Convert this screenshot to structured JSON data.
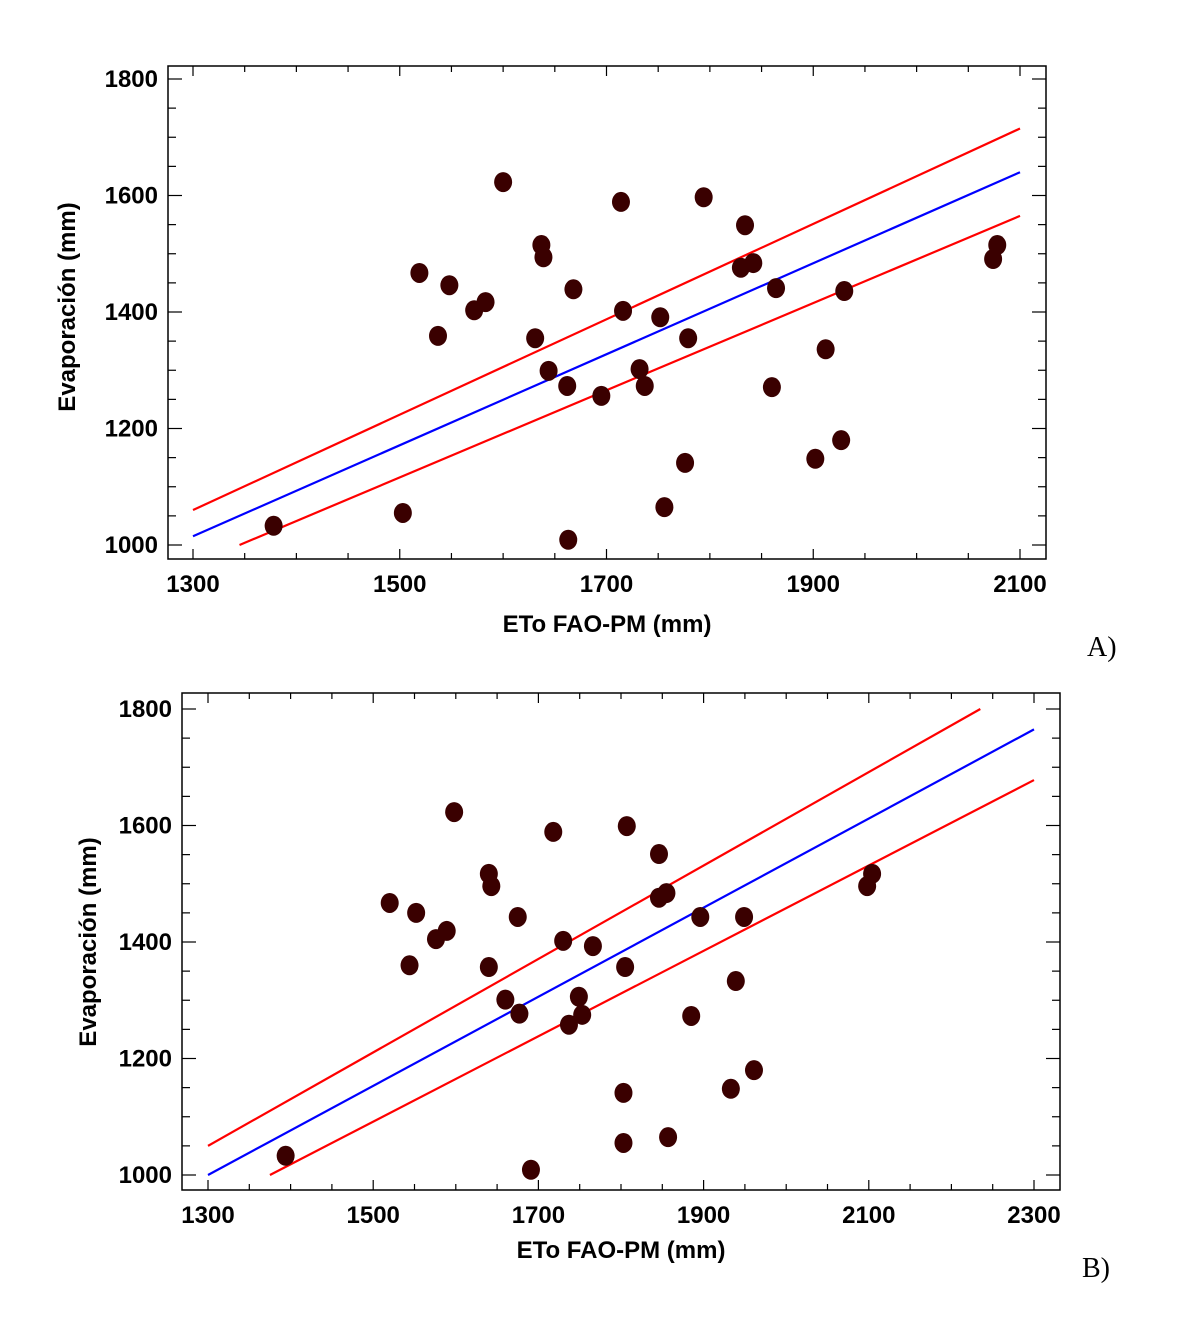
{
  "chart_data": [
    {
      "type": "scatter",
      "panel_label": "A)",
      "xlabel": "ETo FAO-PM (mm)",
      "ylabel": "Evaporación (mm)",
      "xlim": [
        1300,
        2100
      ],
      "ylim": [
        1000,
        1800
      ],
      "xticks": [
        1300,
        1500,
        1700,
        1900,
        2100
      ],
      "yticks": [
        1000,
        1200,
        1400,
        1600,
        1800
      ],
      "grid": false,
      "points": [
        [
          1378,
          1033
        ],
        [
          1503,
          1055
        ],
        [
          1519,
          1467
        ],
        [
          1537,
          1359
        ],
        [
          1548,
          1446
        ],
        [
          1572,
          1403
        ],
        [
          1583,
          1417
        ],
        [
          1600,
          1623
        ],
        [
          1631,
          1355
        ],
        [
          1637,
          1515
        ],
        [
          1639,
          1494
        ],
        [
          1644,
          1299
        ],
        [
          1662,
          1273
        ],
        [
          1663,
          1009
        ],
        [
          1668,
          1439
        ],
        [
          1695,
          1256
        ],
        [
          1714,
          1589
        ],
        [
          1716,
          1402
        ],
        [
          1732,
          1302
        ],
        [
          1737,
          1273
        ],
        [
          1752,
          1391
        ],
        [
          1756,
          1065
        ],
        [
          1776,
          1141
        ],
        [
          1779,
          1355
        ],
        [
          1794,
          1597
        ],
        [
          1830,
          1476
        ],
        [
          1834,
          1549
        ],
        [
          1842,
          1484
        ],
        [
          1860,
          1271
        ],
        [
          1864,
          1441
        ],
        [
          1902,
          1148
        ],
        [
          1912,
          1336
        ],
        [
          1927,
          1180
        ],
        [
          1930,
          1436
        ],
        [
          2074,
          1491
        ],
        [
          2078,
          1515
        ]
      ],
      "lines": [
        {
          "name": "fit",
          "color": "#0000ff",
          "from": [
            1300,
            1015
          ],
          "to": [
            2100,
            1640
          ]
        },
        {
          "name": "upper-limit",
          "color": "#ff0000",
          "from": [
            1300,
            1060
          ],
          "to": [
            2100,
            1715
          ]
        },
        {
          "name": "lower-limit",
          "color": "#ff0000",
          "from": [
            1345,
            1000
          ],
          "to": [
            2100,
            1565
          ]
        }
      ],
      "point_color": "#3a0000"
    },
    {
      "type": "scatter",
      "panel_label": "B)",
      "xlabel": "ETo FAO-PM (mm)",
      "ylabel": "Evaporación (mm)",
      "xlim": [
        1300,
        2300
      ],
      "ylim": [
        1000,
        1800
      ],
      "xticks": [
        1300,
        1500,
        1700,
        1900,
        2100,
        2300
      ],
      "yticks": [
        1000,
        1200,
        1400,
        1600,
        1800
      ],
      "grid": false,
      "points": [
        [
          1394,
          1033
        ],
        [
          1520,
          1467
        ],
        [
          1544,
          1360
        ],
        [
          1552,
          1450
        ],
        [
          1576,
          1405
        ],
        [
          1589,
          1419
        ],
        [
          1598,
          1623
        ],
        [
          1640,
          1357
        ],
        [
          1640,
          1517
        ],
        [
          1643,
          1496
        ],
        [
          1660,
          1301
        ],
        [
          1675,
          1443
        ],
        [
          1677,
          1277
        ],
        [
          1691,
          1009
        ],
        [
          1718,
          1589
        ],
        [
          1730,
          1402
        ],
        [
          1737,
          1258
        ],
        [
          1749,
          1306
        ],
        [
          1753,
          1275
        ],
        [
          1766,
          1393
        ],
        [
          1803,
          1141
        ],
        [
          1805,
          1357
        ],
        [
          1807,
          1599
        ],
        [
          1803,
          1055
        ],
        [
          1846,
          1551
        ],
        [
          1846,
          1476
        ],
        [
          1855,
          1484
        ],
        [
          1857,
          1065
        ],
        [
          1885,
          1273
        ],
        [
          1896,
          1443
        ],
        [
          1933,
          1148
        ],
        [
          1939,
          1333
        ],
        [
          1949,
          1443
        ],
        [
          1961,
          1180
        ],
        [
          2098,
          1496
        ],
        [
          2104,
          1517
        ]
      ],
      "lines": [
        {
          "name": "fit",
          "color": "#0000ff",
          "from": [
            1300,
            1000
          ],
          "to": [
            2300,
            1765
          ]
        },
        {
          "name": "upper-limit",
          "color": "#ff0000",
          "from": [
            1300,
            1050
          ],
          "to": [
            2235,
            1800
          ]
        },
        {
          "name": "lower-limit",
          "color": "#ff0000",
          "from": [
            1375,
            1000
          ],
          "to": [
            2300,
            1678
          ]
        }
      ],
      "point_color": "#3a0000"
    }
  ]
}
